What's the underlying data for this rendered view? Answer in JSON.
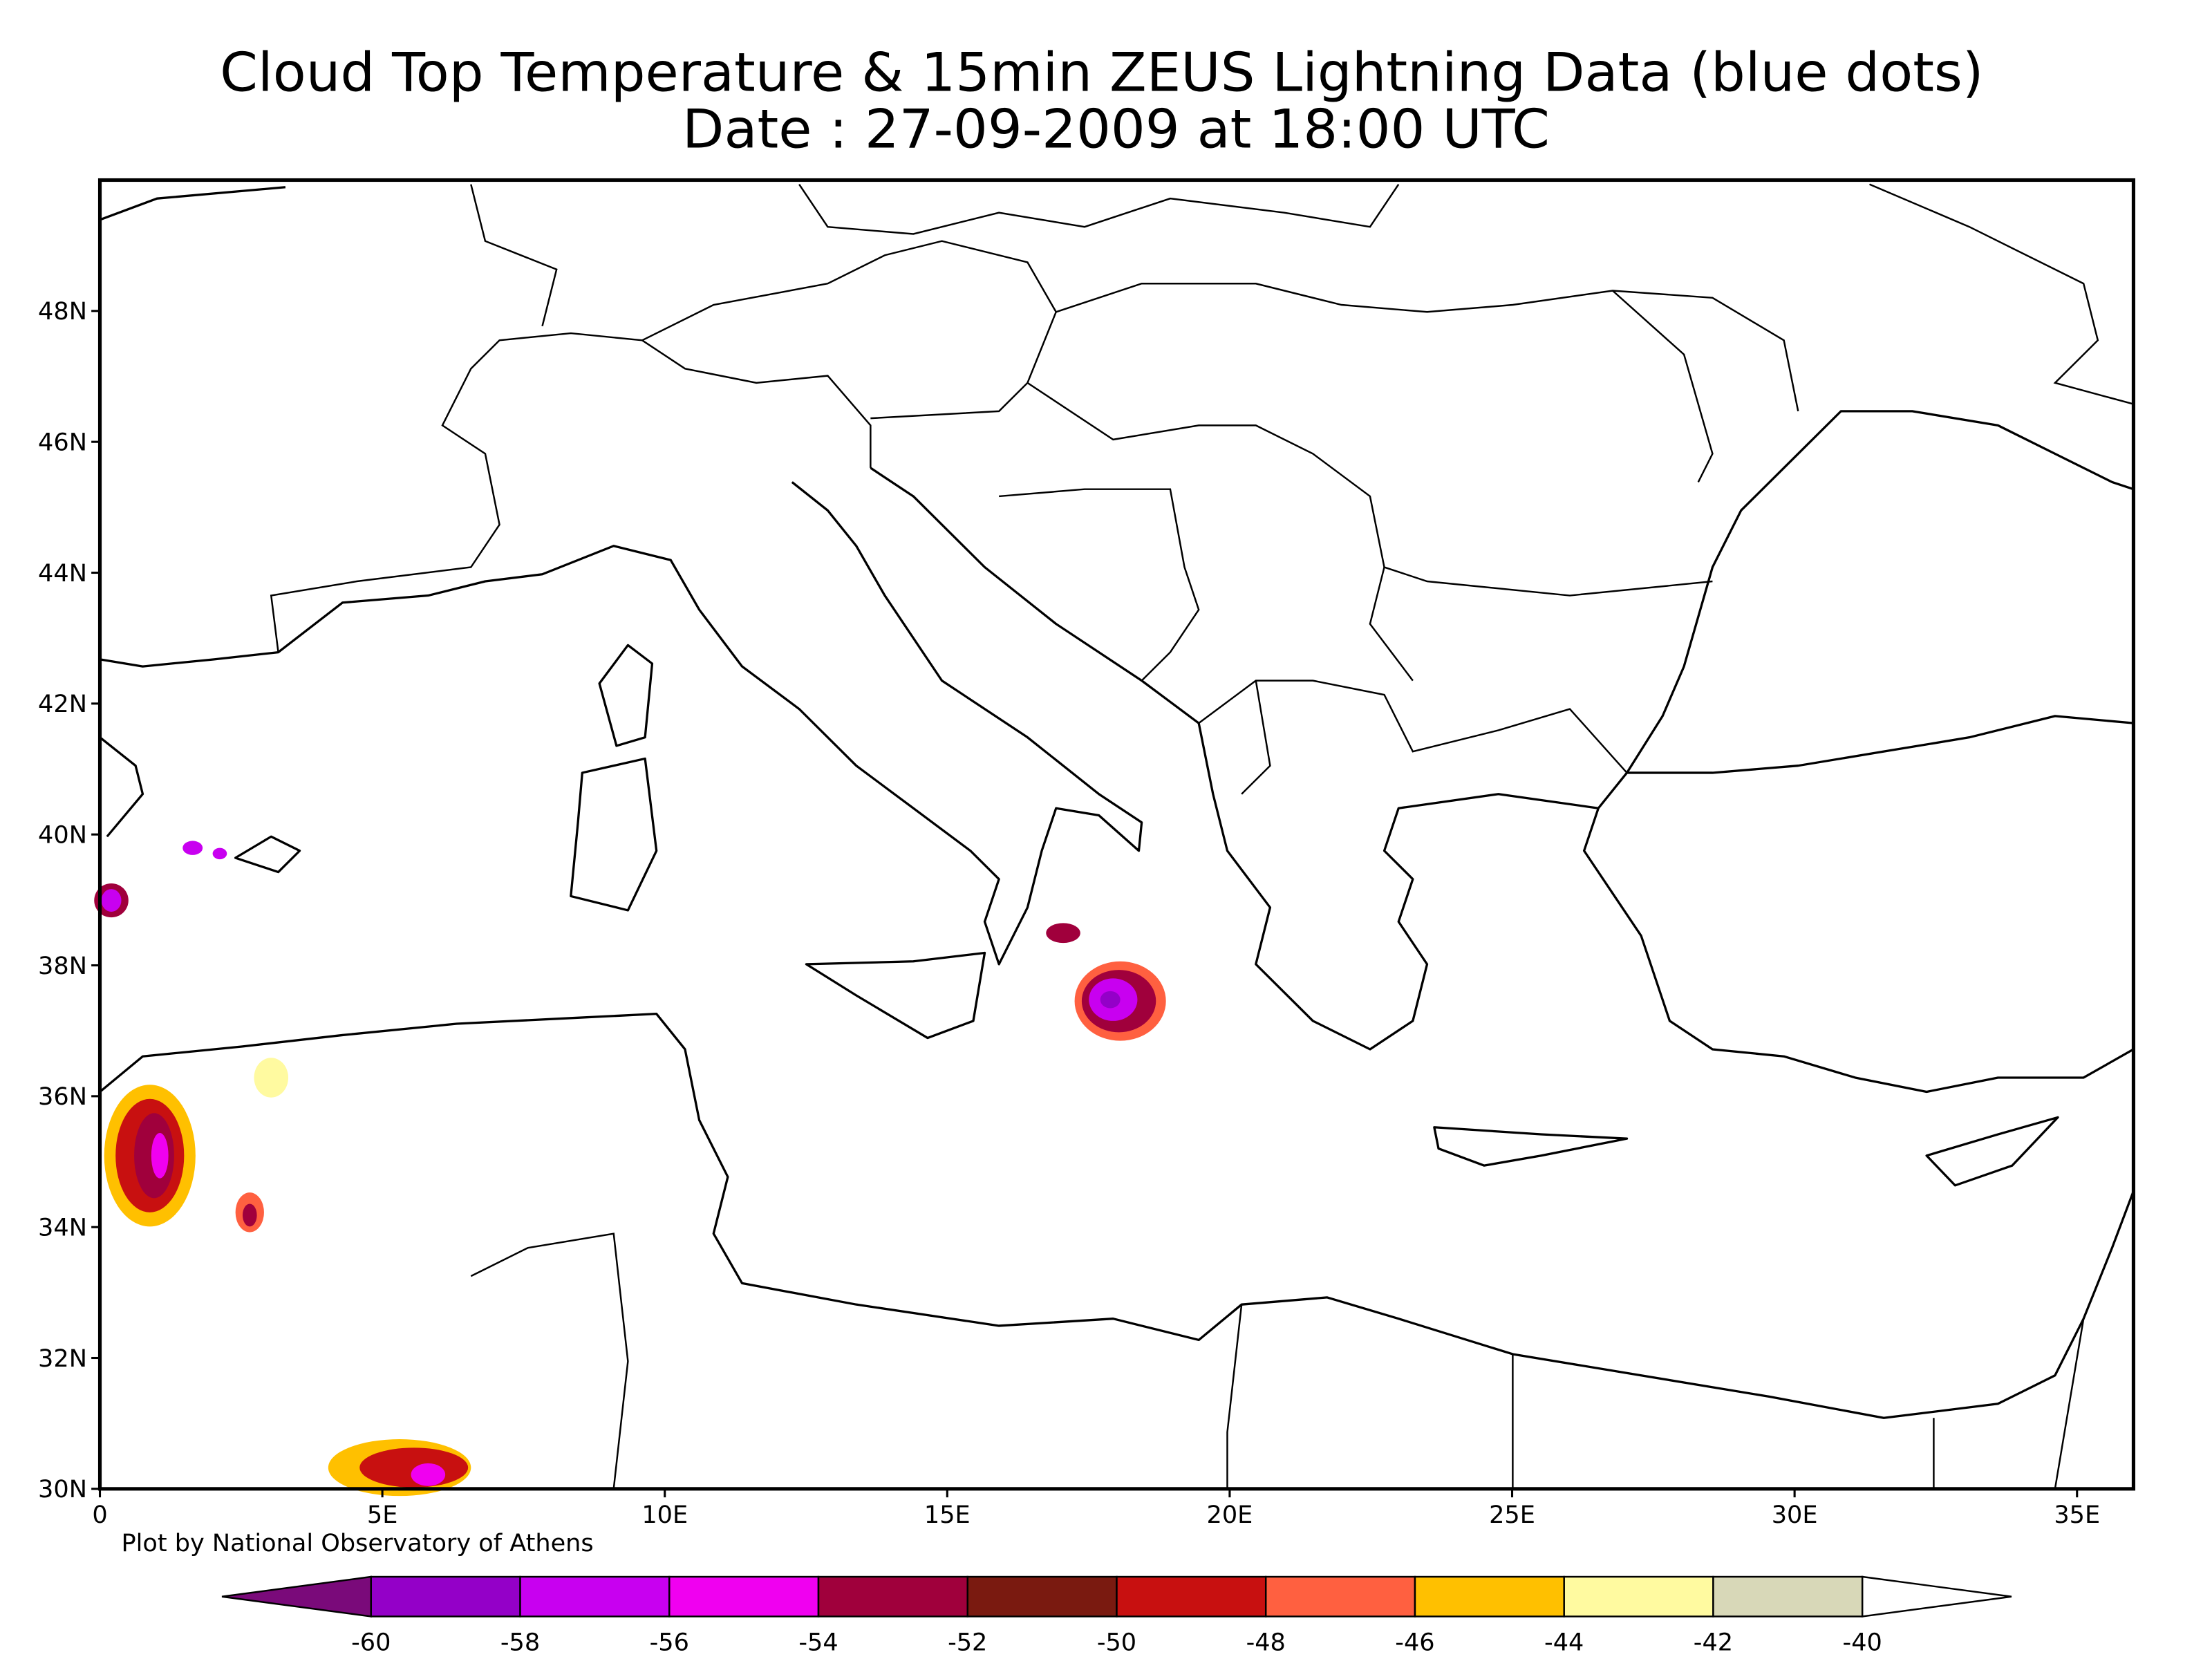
{
  "chart_data": {
    "type": "map",
    "title": [
      "Cloud Top Temperature & 15min ZEUS Lightning Data (blue dots)",
      "Date : 27-09-2009 at 18:00 UTC"
    ],
    "credit": "Plot by National Observatory of Athens",
    "xlim": [
      0,
      36
    ],
    "ylim": [
      30,
      50
    ],
    "xticks": [
      0,
      {
        "value": 5,
        "label": "5E"
      },
      {
        "value": 10,
        "label": "10E"
      },
      {
        "value": 15,
        "label": "15E"
      },
      {
        "value": 20,
        "label": "20E"
      },
      {
        "value": 25,
        "label": "25E"
      },
      {
        "value": 30,
        "label": "30E"
      },
      {
        "value": 35,
        "label": "35E"
      }
    ],
    "yticks": [
      {
        "value": 30,
        "label": "30N"
      },
      {
        "value": 32,
        "label": "32N"
      },
      {
        "value": 34,
        "label": "34N"
      },
      {
        "value": 36,
        "label": "36N"
      },
      {
        "value": 38,
        "label": "38N"
      },
      {
        "value": 40,
        "label": "40N"
      },
      {
        "value": 42,
        "label": "42N"
      },
      {
        "value": 44,
        "label": "44N"
      },
      {
        "value": 46,
        "label": "46N"
      },
      {
        "value": 48,
        "label": "48N"
      }
    ],
    "colorbar": {
      "ticks": [
        -60,
        -58,
        -56,
        -54,
        -52,
        -50,
        -48,
        -46,
        -44,
        -42,
        -40
      ],
      "colors": [
        "#7a0a7a",
        "#9400c8",
        "#c800f0",
        "#f000f0",
        "#a0003c",
        "#7a1a10",
        "#c81010",
        "#ff6040",
        "#ffc000",
        "#fffaa0",
        "#d8d8b8",
        "#ffffff"
      ]
    }
  }
}
